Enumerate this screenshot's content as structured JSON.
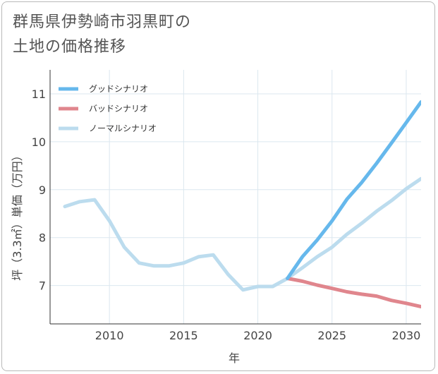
{
  "chart_data": {
    "type": "line",
    "title": "群馬県伊勢崎市羽黒町の\n土地の価格推移",
    "title_lines": [
      "群馬県伊勢崎市羽黒町の",
      "土地の価格推移"
    ],
    "xlabel": "年",
    "ylabel": "坪（3.3㎡）単価（万円）",
    "xlim": [
      2006,
      2031
    ],
    "ylim": [
      6.2,
      11.5
    ],
    "x_ticks": [
      2010,
      2015,
      2020,
      2025,
      2030
    ],
    "y_ticks": [
      7,
      8,
      9,
      10,
      11
    ],
    "grid": true,
    "legend_position": "top-left",
    "series": [
      {
        "name": "グッドシナリオ",
        "color": "#66b8ec",
        "points": [
          [
            2022,
            7.15
          ],
          [
            2023,
            7.6
          ],
          [
            2024,
            7.95
          ],
          [
            2025,
            8.35
          ],
          [
            2026,
            8.8
          ],
          [
            2027,
            9.15
          ],
          [
            2028,
            9.55
          ],
          [
            2029,
            9.97
          ],
          [
            2030,
            10.4
          ],
          [
            2031,
            10.83
          ]
        ]
      },
      {
        "name": "バッドシナリオ",
        "color": "#e0868d",
        "points": [
          [
            2022,
            7.15
          ],
          [
            2023,
            7.09
          ],
          [
            2024,
            7.01
          ],
          [
            2025,
            6.94
          ],
          [
            2026,
            6.87
          ],
          [
            2027,
            6.82
          ],
          [
            2028,
            6.78
          ],
          [
            2029,
            6.69
          ],
          [
            2030,
            6.63
          ],
          [
            2031,
            6.56
          ]
        ]
      },
      {
        "name": "ノーマルシナリオ",
        "color": "#bcdcee",
        "points": [
          [
            2007,
            8.65
          ],
          [
            2008,
            8.75
          ],
          [
            2009,
            8.79
          ],
          [
            2010,
            8.35
          ],
          [
            2011,
            7.8
          ],
          [
            2012,
            7.47
          ],
          [
            2013,
            7.41
          ],
          [
            2014,
            7.41
          ],
          [
            2015,
            7.47
          ],
          [
            2016,
            7.6
          ],
          [
            2017,
            7.64
          ],
          [
            2018,
            7.23
          ],
          [
            2019,
            6.91
          ],
          [
            2020,
            6.98
          ],
          [
            2021,
            6.98
          ],
          [
            2022,
            7.15
          ],
          [
            2023,
            7.37
          ],
          [
            2024,
            7.6
          ],
          [
            2025,
            7.8
          ],
          [
            2026,
            8.07
          ],
          [
            2027,
            8.3
          ],
          [
            2028,
            8.55
          ],
          [
            2029,
            8.77
          ],
          [
            2030,
            9.02
          ],
          [
            2031,
            9.23
          ]
        ]
      }
    ]
  }
}
